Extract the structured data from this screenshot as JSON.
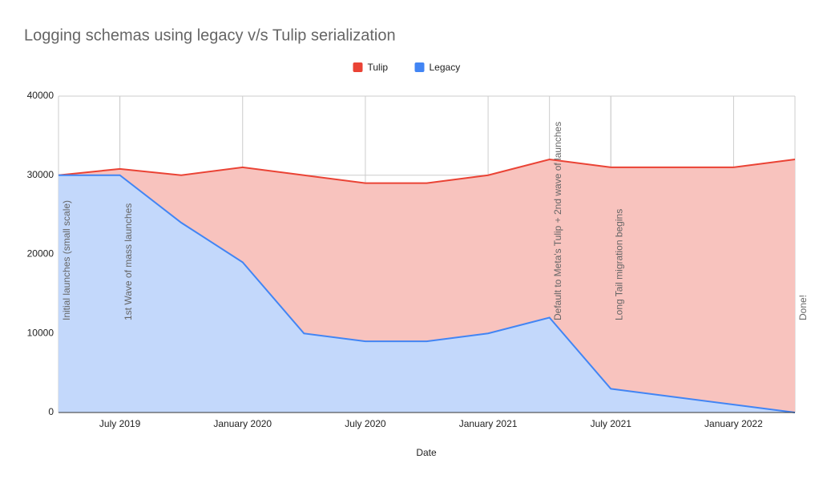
{
  "chart_data": {
    "type": "area",
    "title": "Logging schemas using legacy v/s Tulip serialization",
    "x_label": "Date",
    "x": [
      "2019-04",
      "2019-07",
      "2019-10",
      "2020-01",
      "2020-04",
      "2020-07",
      "2020-10",
      "2021-01",
      "2021-04",
      "2021-07",
      "2022-01",
      "2022-04"
    ],
    "series": [
      {
        "name": "Tulip",
        "color": "#ea4335",
        "values": [
          30000,
          30800,
          30000,
          31000,
          30000,
          29000,
          29000,
          30000,
          32000,
          31000,
          31000,
          32000
        ]
      },
      {
        "name": "Legacy",
        "color": "#4285f4",
        "values": [
          30000,
          30000,
          24000,
          19000,
          10000,
          9000,
          9000,
          10000,
          12000,
          3000,
          1000,
          0
        ]
      }
    ],
    "xlim": [
      "2019-04",
      "2022-04"
    ],
    "xticks": [
      {
        "value": "2019-07",
        "label": "July 2019"
      },
      {
        "value": "2020-01",
        "label": "January 2020"
      },
      {
        "value": "2020-07",
        "label": "July 2020"
      },
      {
        "value": "2021-01",
        "label": "January 2021"
      },
      {
        "value": "2021-07",
        "label": "July 2021"
      },
      {
        "value": "2022-01",
        "label": "January 2022"
      }
    ],
    "ylim": [
      0,
      40000
    ],
    "yticks": [
      0,
      10000,
      20000,
      30000,
      40000
    ],
    "grid": true,
    "legend": "top",
    "annotations": [
      {
        "x": "2019-04",
        "text": "Initial launches (small scale)"
      },
      {
        "x": "2019-07",
        "text": "1st Wave of mass launches"
      },
      {
        "x": "2021-04",
        "text": "Default to Meta's Tulip + 2nd wave of launches"
      },
      {
        "x": "2021-07",
        "text": "Long Tail migration begins"
      },
      {
        "x": "2022-04",
        "text": "Done!"
      }
    ]
  }
}
